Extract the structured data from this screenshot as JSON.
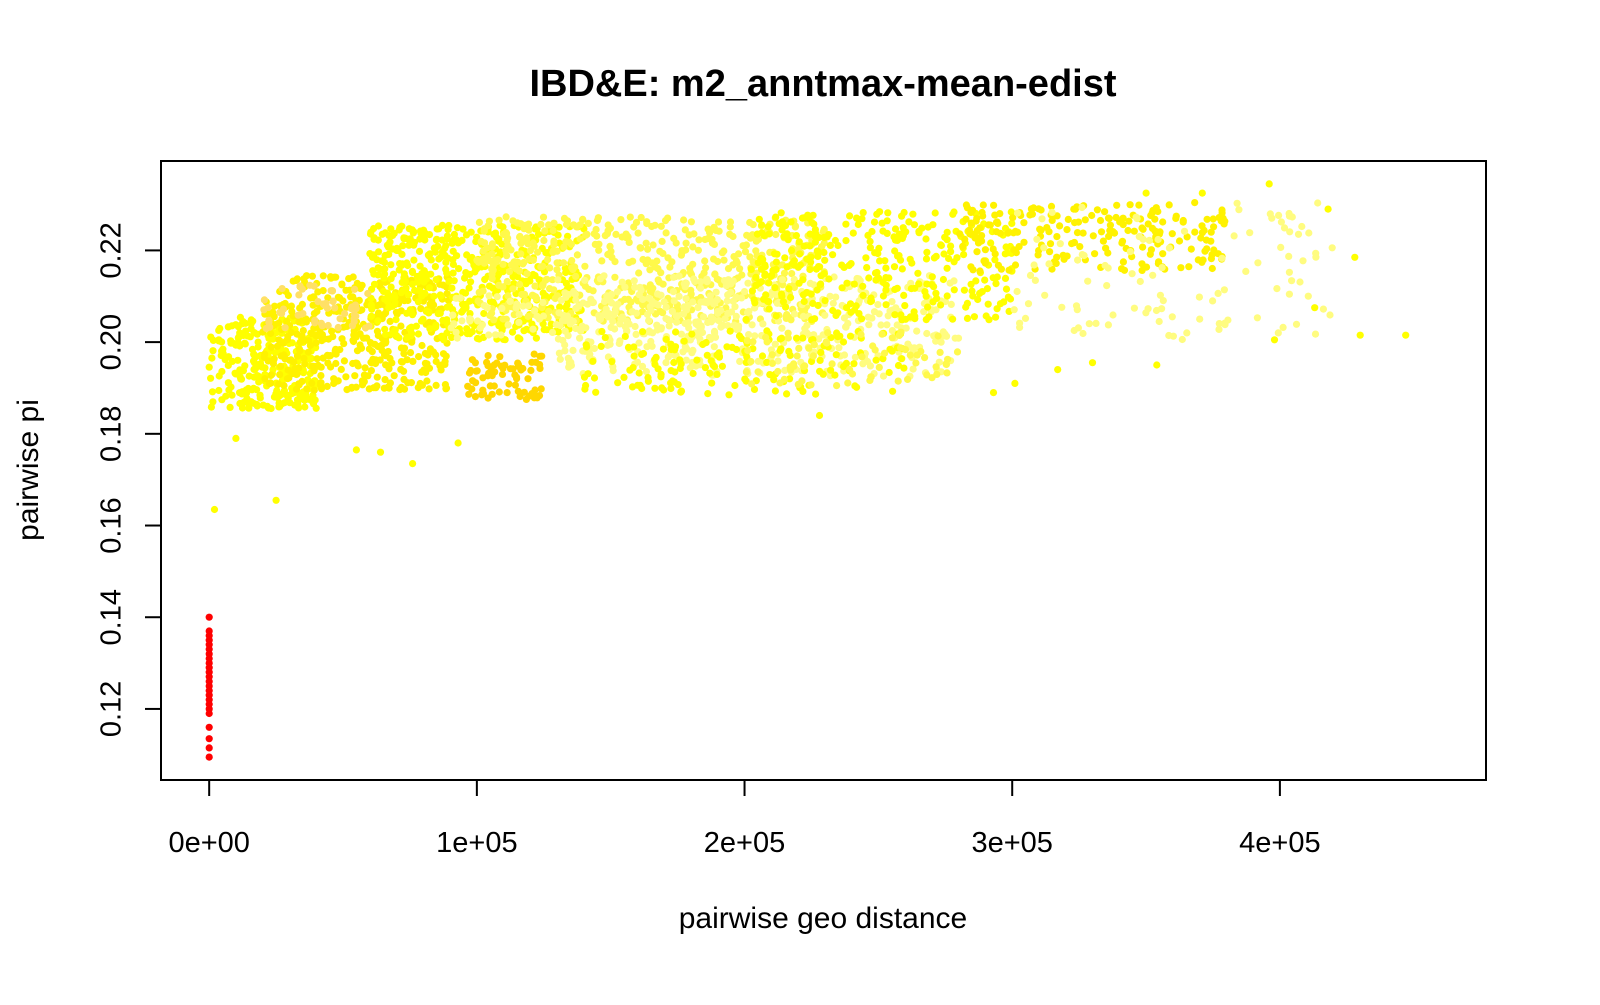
{
  "chart_data": {
    "type": "scatter",
    "title": "IBD&E: m2_anntmax-mean-edist",
    "xlabel": "pairwise geo distance",
    "ylabel": "pairwise pi",
    "xlim": [
      -18000,
      477000
    ],
    "ylim": [
      0.1045,
      0.2395
    ],
    "x_ticks": [
      0,
      100000,
      200000,
      300000,
      400000
    ],
    "x_tick_labels": [
      "0e+00",
      "1e+05",
      "2e+05",
      "3e+05",
      "4e+05"
    ],
    "y_ticks": [
      0.12,
      0.14,
      0.16,
      0.18,
      0.2,
      0.22
    ],
    "y_tick_labels": [
      "0.12",
      "0.14",
      "0.16",
      "0.18",
      "0.20",
      "0.22"
    ],
    "grid": false,
    "legend": "none",
    "colors": {
      "zero_distance_points": "#FF0000",
      "main_cloud": [
        "#FFFF00",
        "#FFF200",
        "#FFF94A",
        "#FFFC80",
        "#FFD700",
        "#FFE066"
      ]
    },
    "series": [
      {
        "color": "#FF0000",
        "points": [
          [
            0,
            0.14
          ],
          [
            0,
            0.137
          ],
          [
            0,
            0.136
          ],
          [
            0,
            0.135
          ],
          [
            0,
            0.134
          ],
          [
            0,
            0.133
          ],
          [
            0,
            0.132
          ],
          [
            0,
            0.131
          ],
          [
            0,
            0.13
          ],
          [
            0,
            0.129
          ],
          [
            0,
            0.128
          ],
          [
            0,
            0.127
          ],
          [
            0,
            0.126
          ],
          [
            0,
            0.125
          ],
          [
            0,
            0.124
          ],
          [
            0,
            0.123
          ],
          [
            0,
            0.122
          ],
          [
            0,
            0.121
          ],
          [
            0,
            0.12
          ],
          [
            0,
            0.119
          ],
          [
            0,
            0.116
          ],
          [
            0,
            0.1135
          ],
          [
            0,
            0.1115
          ],
          [
            0,
            0.1095
          ]
        ]
      },
      {
        "color": "#FFFF00",
        "points": [
          [
            2000,
            0.1635
          ],
          [
            25000,
            0.1655
          ],
          [
            10000,
            0.179
          ],
          [
            76000,
            0.1735
          ],
          [
            93000,
            0.178
          ],
          [
            64000,
            0.176
          ],
          [
            55000,
            0.1765
          ],
          [
            228000,
            0.184
          ],
          [
            293000,
            0.189
          ],
          [
            301000,
            0.191
          ],
          [
            317000,
            0.194
          ],
          [
            330000,
            0.1955
          ],
          [
            354000,
            0.195
          ],
          [
            398000,
            0.2005
          ],
          [
            430000,
            0.2015
          ],
          [
            447000,
            0.2015
          ],
          [
            413000,
            0.2075
          ],
          [
            428000,
            0.2185
          ],
          [
            418000,
            0.229
          ],
          [
            396000,
            0.2345
          ],
          [
            371000,
            0.2325
          ],
          [
            350000,
            0.2325
          ]
        ]
      }
    ],
    "clusters": [
      {
        "x_range": [
          0,
          40000
        ],
        "y_range": [
          0.1855,
          0.2055
        ],
        "count": 260,
        "color": "#FFFF00"
      },
      {
        "x_range": [
          20000,
          90000
        ],
        "y_range": [
          0.1895,
          0.2145
        ],
        "count": 420,
        "color": "#FFF200"
      },
      {
        "x_range": [
          60000,
          140000
        ],
        "y_range": [
          0.2005,
          0.2255
        ],
        "count": 520,
        "color": "#FFFF00"
      },
      {
        "x_range": [
          100000,
          230000
        ],
        "y_range": [
          0.2045,
          0.2275
        ],
        "count": 560,
        "color": "#FFF94A"
      },
      {
        "x_range": [
          130000,
          280000
        ],
        "y_range": [
          0.1925,
          0.2145
        ],
        "count": 420,
        "color": "#FFFC80"
      },
      {
        "x_range": [
          200000,
          300000
        ],
        "y_range": [
          0.2045,
          0.2285
        ],
        "count": 320,
        "color": "#FFFF00"
      },
      {
        "x_range": [
          280000,
          380000
        ],
        "y_range": [
          0.2155,
          0.2305
        ],
        "count": 220,
        "color": "#FFF200"
      },
      {
        "x_range": [
          300000,
          420000
        ],
        "y_range": [
          0.2005,
          0.2305
        ],
        "count": 110,
        "color": "#FFFC80"
      },
      {
        "x_range": [
          95000,
          125000
        ],
        "y_range": [
          0.1875,
          0.1975
        ],
        "count": 70,
        "color": "#FFD700"
      },
      {
        "x_range": [
          20000,
          60000
        ],
        "y_range": [
          0.2025,
          0.2125
        ],
        "count": 50,
        "color": "#FFE066"
      },
      {
        "x_range": [
          90000,
          200000
        ],
        "y_range": [
          0.2005,
          0.2105
        ],
        "count": 110,
        "color": "#FFFC80"
      },
      {
        "x_range": [
          140000,
          260000
        ],
        "y_range": [
          0.1885,
          0.2025
        ],
        "count": 170,
        "color": "#FFFF00"
      },
      {
        "x_range": [
          200000,
          280000
        ],
        "y_range": [
          0.1905,
          0.2025
        ],
        "count": 70,
        "color": "#FFF94A"
      }
    ]
  }
}
